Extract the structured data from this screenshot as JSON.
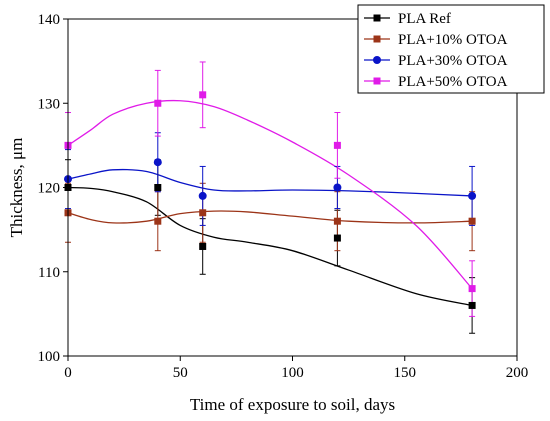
{
  "chart_data": {
    "type": "line",
    "xlabel": "Time of exposure to soil, days",
    "ylabel": "Thickness, μm",
    "xlim": [
      0,
      200
    ],
    "ylim": [
      100,
      140
    ],
    "xticks": [
      0,
      50,
      100,
      150,
      200
    ],
    "yticks": [
      100,
      110,
      120,
      130,
      140
    ],
    "grid": false,
    "legend": "top-right",
    "x": [
      0,
      40,
      60,
      120,
      180
    ],
    "series": [
      {
        "name": "PLA Ref",
        "color": "#000000",
        "marker": "square",
        "values": [
          120,
          120,
          113,
          114,
          106
        ],
        "errors": [
          3.3,
          3.3,
          3.3,
          3.3,
          3.3
        ],
        "curve_y": [
          120.0,
          119.9,
          119.5,
          118.3,
          115.5,
          114.1,
          113.5,
          112.5,
          110.2,
          107.4,
          106.0
        ]
      },
      {
        "name": "PLA+10% OTOA",
        "color": "#9c3418",
        "marker": "square",
        "values": [
          117,
          116,
          117,
          116,
          116
        ],
        "errors": [
          3.5,
          3.5,
          3.5,
          3.5,
          3.5
        ],
        "curve_y": [
          117.0,
          116.2,
          115.8,
          116.0,
          116.9,
          117.2,
          117.1,
          116.6,
          116.0,
          115.8,
          116.0
        ]
      },
      {
        "name": "PLA+30% OTOA",
        "color": "#0a14c8",
        "marker": "circle",
        "values": [
          121,
          123,
          119,
          120,
          119
        ],
        "errors": [
          3.5,
          3.5,
          3.5,
          2.5,
          3.5
        ],
        "curve_y": [
          121.0,
          121.6,
          122.1,
          121.9,
          120.6,
          119.7,
          119.6,
          119.7,
          119.6,
          119.3,
          119.0
        ]
      },
      {
        "name": "PLA+50% OTOA",
        "color": "#e01be8",
        "marker": "square",
        "values": [
          125,
          130,
          131,
          125,
          108
        ],
        "errors": [
          3.9,
          3.9,
          3.9,
          3.9,
          3.3
        ],
        "curve_y": [
          125.0,
          126.8,
          128.7,
          130.0,
          130.3,
          129.6,
          128.0,
          125.4,
          121.5,
          115.5,
          108.0
        ]
      }
    ],
    "curve_x": [
      0,
      10,
      20,
      35,
      50,
      65,
      80,
      100,
      125,
      155,
      180
    ]
  }
}
